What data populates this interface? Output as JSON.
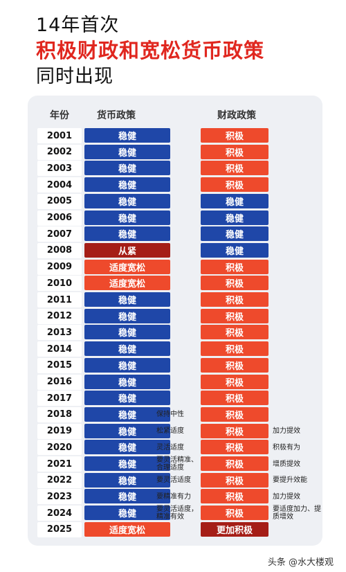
{
  "title": {
    "line1": "14年首次",
    "line2": "积极财政和宽松货币政策",
    "line3": "同时出现"
  },
  "table": {
    "headers": {
      "year": "年份",
      "monetary": "货币政策",
      "fiscal": "财政政策"
    },
    "rows": [
      {
        "year": "2001",
        "monetary": "稳健",
        "m_color": "blue",
        "fiscal": "积极",
        "f_color": "orange",
        "m_note": "",
        "f_note": ""
      },
      {
        "year": "2002",
        "monetary": "稳健",
        "m_color": "blue",
        "fiscal": "积极",
        "f_color": "orange",
        "m_note": "",
        "f_note": ""
      },
      {
        "year": "2003",
        "monetary": "稳健",
        "m_color": "blue",
        "fiscal": "积极",
        "f_color": "orange",
        "m_note": "",
        "f_note": ""
      },
      {
        "year": "2004",
        "monetary": "稳健",
        "m_color": "blue",
        "fiscal": "积极",
        "f_color": "orange",
        "m_note": "",
        "f_note": ""
      },
      {
        "year": "2005",
        "monetary": "稳健",
        "m_color": "blue",
        "fiscal": "稳健",
        "f_color": "blue",
        "m_note": "",
        "f_note": ""
      },
      {
        "year": "2006",
        "monetary": "稳健",
        "m_color": "blue",
        "fiscal": "稳健",
        "f_color": "blue",
        "m_note": "",
        "f_note": ""
      },
      {
        "year": "2007",
        "monetary": "稳健",
        "m_color": "blue",
        "fiscal": "稳健",
        "f_color": "blue",
        "m_note": "",
        "f_note": ""
      },
      {
        "year": "2008",
        "monetary": "从紧",
        "m_color": "darkred",
        "fiscal": "稳健",
        "f_color": "blue",
        "m_note": "",
        "f_note": ""
      },
      {
        "year": "2009",
        "monetary": "适度宽松",
        "m_color": "orange",
        "fiscal": "积极",
        "f_color": "orange",
        "m_note": "",
        "f_note": ""
      },
      {
        "year": "2010",
        "monetary": "适度宽松",
        "m_color": "orange",
        "fiscal": "积极",
        "f_color": "orange",
        "m_note": "",
        "f_note": ""
      },
      {
        "year": "2011",
        "monetary": "稳健",
        "m_color": "blue",
        "fiscal": "积极",
        "f_color": "orange",
        "m_note": "",
        "f_note": ""
      },
      {
        "year": "2012",
        "monetary": "稳健",
        "m_color": "blue",
        "fiscal": "积极",
        "f_color": "orange",
        "m_note": "",
        "f_note": ""
      },
      {
        "year": "2013",
        "monetary": "稳健",
        "m_color": "blue",
        "fiscal": "积极",
        "f_color": "orange",
        "m_note": "",
        "f_note": ""
      },
      {
        "year": "2014",
        "monetary": "稳健",
        "m_color": "blue",
        "fiscal": "积极",
        "f_color": "orange",
        "m_note": "",
        "f_note": ""
      },
      {
        "year": "2015",
        "monetary": "稳健",
        "m_color": "blue",
        "fiscal": "积极",
        "f_color": "orange",
        "m_note": "",
        "f_note": ""
      },
      {
        "year": "2016",
        "monetary": "稳健",
        "m_color": "blue",
        "fiscal": "积极",
        "f_color": "orange",
        "m_note": "",
        "f_note": ""
      },
      {
        "year": "2017",
        "monetary": "稳健",
        "m_color": "blue",
        "fiscal": "积极",
        "f_color": "orange",
        "m_note": "",
        "f_note": ""
      },
      {
        "year": "2018",
        "monetary": "稳健",
        "m_color": "blue",
        "fiscal": "积极",
        "f_color": "orange",
        "m_note": "保持中性",
        "f_note": ""
      },
      {
        "year": "2019",
        "monetary": "稳健",
        "m_color": "blue",
        "fiscal": "积极",
        "f_color": "orange",
        "m_note": "松紧适度",
        "f_note": "加力提效"
      },
      {
        "year": "2020",
        "monetary": "稳健",
        "m_color": "blue",
        "fiscal": "积极",
        "f_color": "orange",
        "m_note": "灵活适度",
        "f_note": "积极有为"
      },
      {
        "year": "2021",
        "monetary": "稳健",
        "m_color": "blue",
        "fiscal": "积极",
        "f_color": "orange",
        "m_note": "要灵活精准、合理适度",
        "f_note": "增质提效"
      },
      {
        "year": "2022",
        "monetary": "稳健",
        "m_color": "blue",
        "fiscal": "积极",
        "f_color": "orange",
        "m_note": "要灵活适度",
        "f_note": "要提升效能"
      },
      {
        "year": "2023",
        "monetary": "稳健",
        "m_color": "blue",
        "fiscal": "积极",
        "f_color": "orange",
        "m_note": "要精准有力",
        "f_note": "加力提效"
      },
      {
        "year": "2024",
        "monetary": "稳健",
        "m_color": "blue",
        "fiscal": "积极",
        "f_color": "orange",
        "m_note": "要灵活适度，精准有效",
        "f_note": "要适度加力、提质增效"
      },
      {
        "year": "2025",
        "monetary": "适度宽松",
        "m_color": "orange",
        "fiscal": "更加积极",
        "f_color": "darkred",
        "m_note": "",
        "f_note": ""
      }
    ]
  },
  "colors": {
    "blue": "#1f47a8",
    "orange": "#ee4a2c",
    "darkred": "#a51e17",
    "title_red": "#e0271f"
  },
  "watermark": "头条 @水大楼观"
}
